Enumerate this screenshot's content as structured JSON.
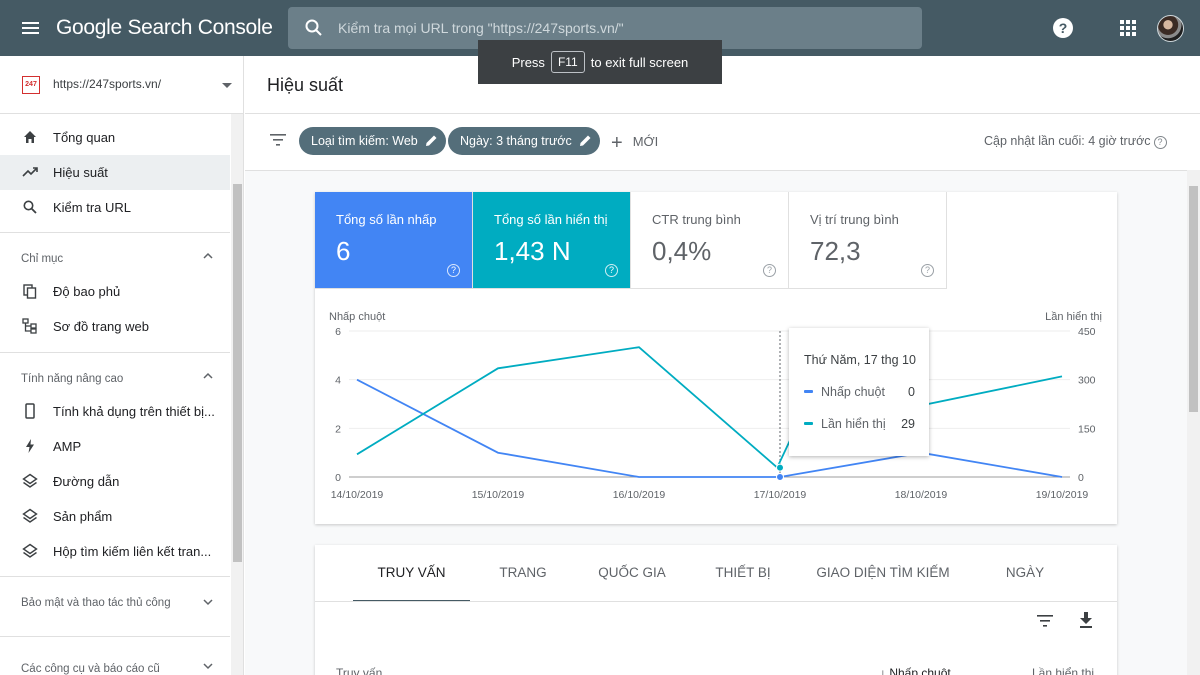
{
  "header": {
    "brand": "Google Search Console",
    "search_placeholder": "Kiểm tra mọi URL trong \"https://247sports.vn/\"",
    "help_label": "?"
  },
  "fullscreen_toast": {
    "prefix": "Press",
    "key": "F11",
    "suffix": "to exit full screen"
  },
  "sidebar": {
    "property": {
      "logo_text": "247",
      "name": "https://247sports.vn/"
    },
    "items": [
      {
        "label": "Tổng quan",
        "icon": "home-icon"
      },
      {
        "label": "Hiệu suất",
        "icon": "trending-up-icon"
      },
      {
        "label": "Kiểm tra URL",
        "icon": "search-icon"
      }
    ],
    "sections": [
      {
        "title": "Chỉ mục",
        "items": [
          {
            "label": "Độ bao phủ",
            "icon": "copy-icon"
          },
          {
            "label": "Sơ đồ trang web",
            "icon": "sitemap-icon"
          }
        ]
      },
      {
        "title": "Tính năng nâng cao",
        "items": [
          {
            "label": "Tính khả dụng trên thiết bị...",
            "icon": "smartphone-icon"
          },
          {
            "label": "AMP",
            "icon": "bolt-icon"
          },
          {
            "label": "Đường dẫn",
            "icon": "layers-icon"
          },
          {
            "label": "Sản phẩm",
            "icon": "layers-icon"
          },
          {
            "label": "Hộp tìm kiếm liên kết tran...",
            "icon": "layers-icon"
          }
        ]
      },
      {
        "title": "Bảo mật và thao tác thủ công"
      },
      {
        "title": "Các công cụ và báo cáo cũ"
      }
    ]
  },
  "main": {
    "title": "Hiệu suất",
    "filters": [
      {
        "label": "Loại tìm kiếm: Web"
      },
      {
        "label": "Ngày: 3 tháng trước"
      }
    ],
    "new_label": "MỚI",
    "last_updated": "Cập nhật lần cuối: 4 giờ trước"
  },
  "metrics": [
    {
      "label": "Tổng số lần nhấp",
      "value": "6"
    },
    {
      "label": "Tổng số lần hiển thị",
      "value": "1,43 N"
    },
    {
      "label": "CTR trung bình",
      "value": "0,4%"
    },
    {
      "label": "Vị trí trung bình",
      "value": "72,3"
    }
  ],
  "chart_data": {
    "type": "line",
    "left_axis_label": "Nhấp chuột",
    "right_axis_label": "Lần hiển thị",
    "left_ylim": [
      0,
      6
    ],
    "left_ticks": [
      "0",
      "2",
      "4",
      "6"
    ],
    "right_ylim": [
      0,
      450
    ],
    "right_ticks": [
      "0",
      "150",
      "300",
      "450"
    ],
    "x_labels": [
      "14/10/2019",
      "15/10/2019",
      "16/10/2019",
      "17/10/2019",
      "18/10/2019",
      "19/10/2019"
    ],
    "series": [
      {
        "name": "Nhấp chuột",
        "axis": "left",
        "color": "#4285f4",
        "x": [
          0,
          1,
          2,
          3,
          4,
          5
        ],
        "values": [
          4,
          1,
          0,
          0,
          1,
          0
        ]
      },
      {
        "name": "Lần hiển thị",
        "axis": "right",
        "color": "#00acc1",
        "x": [
          0,
          1,
          2,
          2.98,
          3.1,
          5
        ],
        "values": [
          70,
          335,
          400,
          29,
          140,
          310
        ]
      }
    ],
    "tooltip": {
      "title": "Thứ Năm, 17 thg 10",
      "x": 3,
      "rows": [
        {
          "name": "Nhấp chuột",
          "value": "0",
          "color": "#4285f4"
        },
        {
          "name": "Lần hiển thị",
          "value": "29",
          "color": "#00acc1"
        }
      ]
    }
  },
  "table": {
    "tabs": [
      "TRUY VẤN",
      "TRANG",
      "QUỐC GIA",
      "THIẾT BỊ",
      "GIAO DIỆN TÌM KIẾM",
      "NGÀY"
    ],
    "columns": [
      "Truy vấn",
      "↓ Nhấp chuột",
      "Lần hiển thị"
    ]
  }
}
